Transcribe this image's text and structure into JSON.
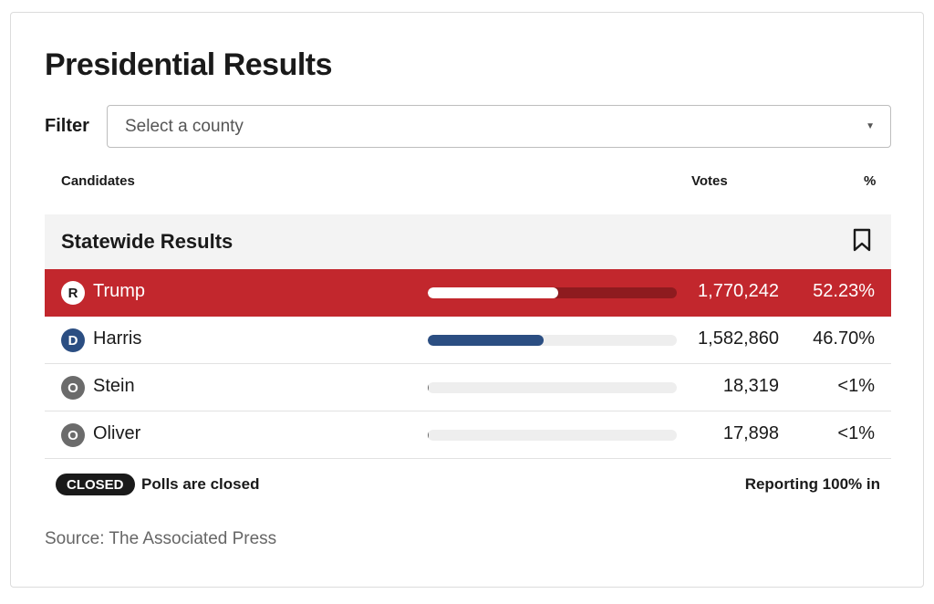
{
  "title": "Presidential Results",
  "filter": {
    "label": "Filter",
    "placeholder": "Select a county"
  },
  "columns": {
    "candidates": "Candidates",
    "votes": "Votes",
    "percent": "%"
  },
  "section": {
    "label": "Statewide Results"
  },
  "candidates": [
    {
      "party": "R",
      "name": "Trump",
      "votes": "1,770,242",
      "percent": "52.23%",
      "share": 52.23
    },
    {
      "party": "D",
      "name": "Harris",
      "votes": "1,582,860",
      "percent": "46.70%",
      "share": 46.7
    },
    {
      "party": "O",
      "name": "Stein",
      "votes": "18,319",
      "percent": "<1%",
      "share": 0.54
    },
    {
      "party": "O",
      "name": "Oliver",
      "votes": "17,898",
      "percent": "<1%",
      "share": 0.53
    }
  ],
  "footer": {
    "status_badge": "CLOSED",
    "status_text": "Polls are closed",
    "reporting": "Reporting 100% in"
  },
  "source": "Source: The Associated Press",
  "colors": {
    "republican": "#c2272d",
    "democrat": "#2b4e82",
    "other": "#6b6b6b"
  },
  "icons": {
    "bookmark": "bookmark-icon",
    "dropdown": "chevron-down-icon"
  }
}
